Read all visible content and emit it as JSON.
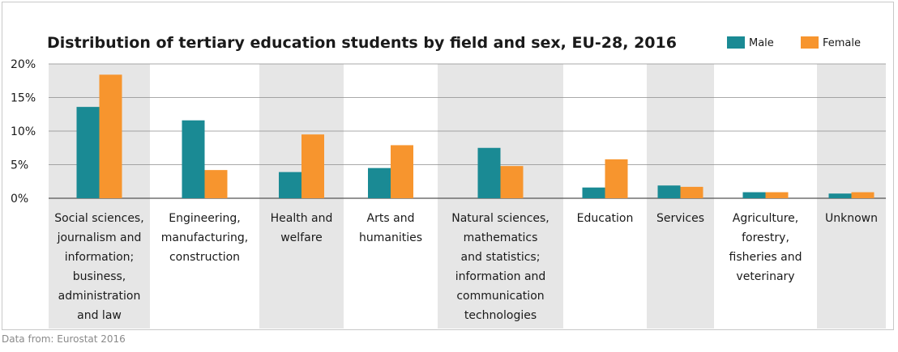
{
  "chart_data": {
    "type": "bar",
    "title": "Distribution of tertiary education students by field and sex, EU-28, 2016",
    "ylim": [
      0,
      20
    ],
    "yticks": [
      "0%",
      "5%",
      "10%",
      "15%",
      "20%"
    ],
    "categories": [
      [
        "Social sciences,",
        "journalism and",
        "information;",
        "business,",
        "administration",
        "and law"
      ],
      [
        "Engineering,",
        "manufacturing,",
        "construction"
      ],
      [
        "Health and",
        "welfare"
      ],
      [
        "Arts and",
        "humanities"
      ],
      [
        "Natural sciences,",
        "mathematics",
        "and statistics;",
        "information and",
        "communication",
        "technologies"
      ],
      [
        "Education"
      ],
      [
        "Services"
      ],
      [
        "Agriculture,",
        "forestry,",
        "fisheries and",
        "veterinary"
      ],
      [
        "Unknown"
      ]
    ],
    "series": [
      {
        "name": "Male",
        "color": "#1a8a94",
        "values": [
          13.6,
          11.6,
          3.9,
          4.5,
          7.5,
          1.6,
          1.9,
          0.9,
          0.7
        ]
      },
      {
        "name": "Female",
        "color": "#f7952e",
        "values": [
          18.4,
          4.2,
          9.5,
          7.9,
          4.8,
          5.8,
          1.7,
          0.9,
          0.9
        ]
      }
    ],
    "legend_position": "top-right",
    "grid": true,
    "band_color": "#e6e6e6"
  },
  "source_text": "Data from: Eurostat 2016"
}
